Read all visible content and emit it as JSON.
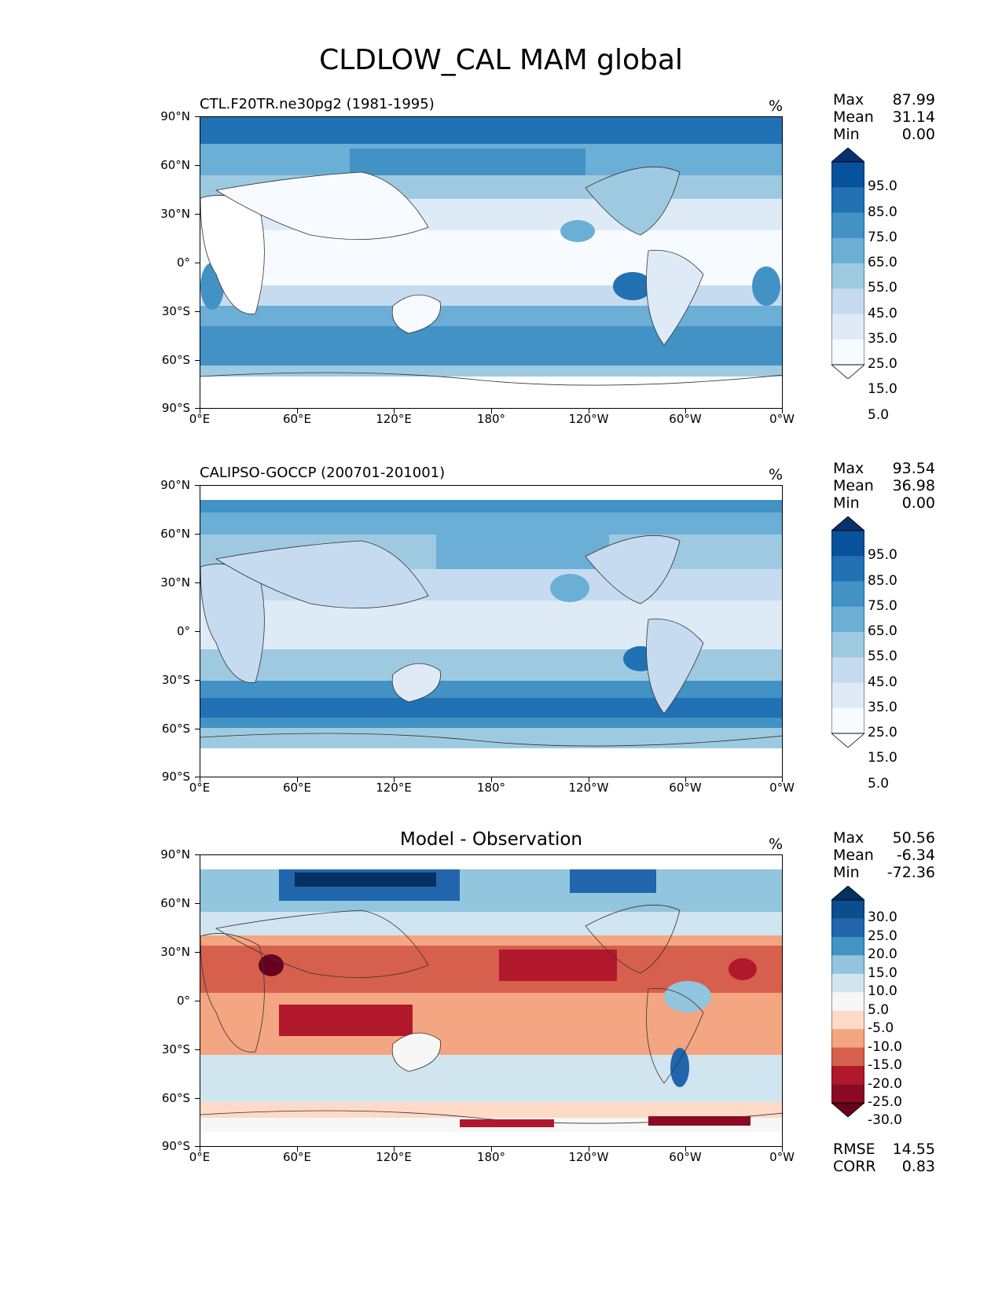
{
  "figure": {
    "title": "CLDLOW_CAL MAM global"
  },
  "chart_data": [
    {
      "type": "heatmap",
      "title": "CTL.F20TR.ne30pg2 (1981-1995)",
      "units": "%",
      "stats": [
        {
          "label": "Max",
          "value": "87.99"
        },
        {
          "label": "Mean",
          "value": "31.14"
        },
        {
          "label": "Min",
          "value": "0.00"
        }
      ],
      "colorbar_levels": [
        "95.0",
        "85.0",
        "75.0",
        "65.0",
        "55.0",
        "45.0",
        "35.0",
        "25.0",
        "15.0",
        "5.0"
      ],
      "colorbar_colors": [
        "#08306b",
        "#08519c",
        "#2171b5",
        "#4292c6",
        "#6baed6",
        "#9ecae1",
        "#c6dbef",
        "#deebf7",
        "#f7fbff",
        "#ffffff"
      ],
      "lat_ticks": [
        "90°N",
        "60°N",
        "30°N",
        "0°",
        "30°S",
        "60°S",
        "90°S"
      ],
      "lon_ticks": [
        "0°E",
        "60°E",
        "120°E",
        "180°",
        "120°W",
        "60°W",
        "0°W"
      ]
    },
    {
      "type": "heatmap",
      "title": "CALIPSO-GOCCP (200701-201001)",
      "units": "%",
      "stats": [
        {
          "label": "Max",
          "value": "93.54"
        },
        {
          "label": "Mean",
          "value": "36.98"
        },
        {
          "label": "Min",
          "value": "0.00"
        }
      ],
      "colorbar_levels": [
        "95.0",
        "85.0",
        "75.0",
        "65.0",
        "55.0",
        "45.0",
        "35.0",
        "25.0",
        "15.0",
        "5.0"
      ],
      "colorbar_colors": [
        "#08306b",
        "#08519c",
        "#2171b5",
        "#4292c6",
        "#6baed6",
        "#9ecae1",
        "#c6dbef",
        "#deebf7",
        "#f7fbff",
        "#ffffff"
      ],
      "lat_ticks": [
        "90°N",
        "60°N",
        "30°N",
        "0°",
        "30°S",
        "60°S",
        "90°S"
      ],
      "lon_ticks": [
        "0°E",
        "60°E",
        "120°E",
        "180°",
        "120°W",
        "60°W",
        "0°W"
      ]
    },
    {
      "type": "heatmap",
      "title": "Model - Observation",
      "units": "%",
      "stats": [
        {
          "label": "Max",
          "value": "50.56"
        },
        {
          "label": "Mean",
          "value": "-6.34"
        },
        {
          "label": "Min",
          "value": "-72.36"
        }
      ],
      "colorbar_levels": [
        "30.0",
        "25.0",
        "20.0",
        "15.0",
        "10.0",
        "5.0",
        "-5.0",
        "-10.0",
        "-15.0",
        "-20.0",
        "-25.0",
        "-30.0"
      ],
      "colorbar_colors": [
        "#053061",
        "#0c4d8e",
        "#2166ac",
        "#4393c3",
        "#92c5de",
        "#d1e5f0",
        "#f7f7f7",
        "#fddbc7",
        "#f4a582",
        "#d6604d",
        "#b2182b",
        "#8b0a23",
        "#67001f"
      ],
      "lat_ticks": [
        "90°N",
        "60°N",
        "30°N",
        "0°",
        "30°S",
        "60°S",
        "90°S"
      ],
      "lon_ticks": [
        "0°E",
        "60°E",
        "120°E",
        "180°",
        "120°W",
        "60°W",
        "0°W"
      ],
      "metrics": [
        {
          "label": "RMSE",
          "value": "14.55"
        },
        {
          "label": "CORR",
          "value": "0.83"
        }
      ]
    }
  ]
}
